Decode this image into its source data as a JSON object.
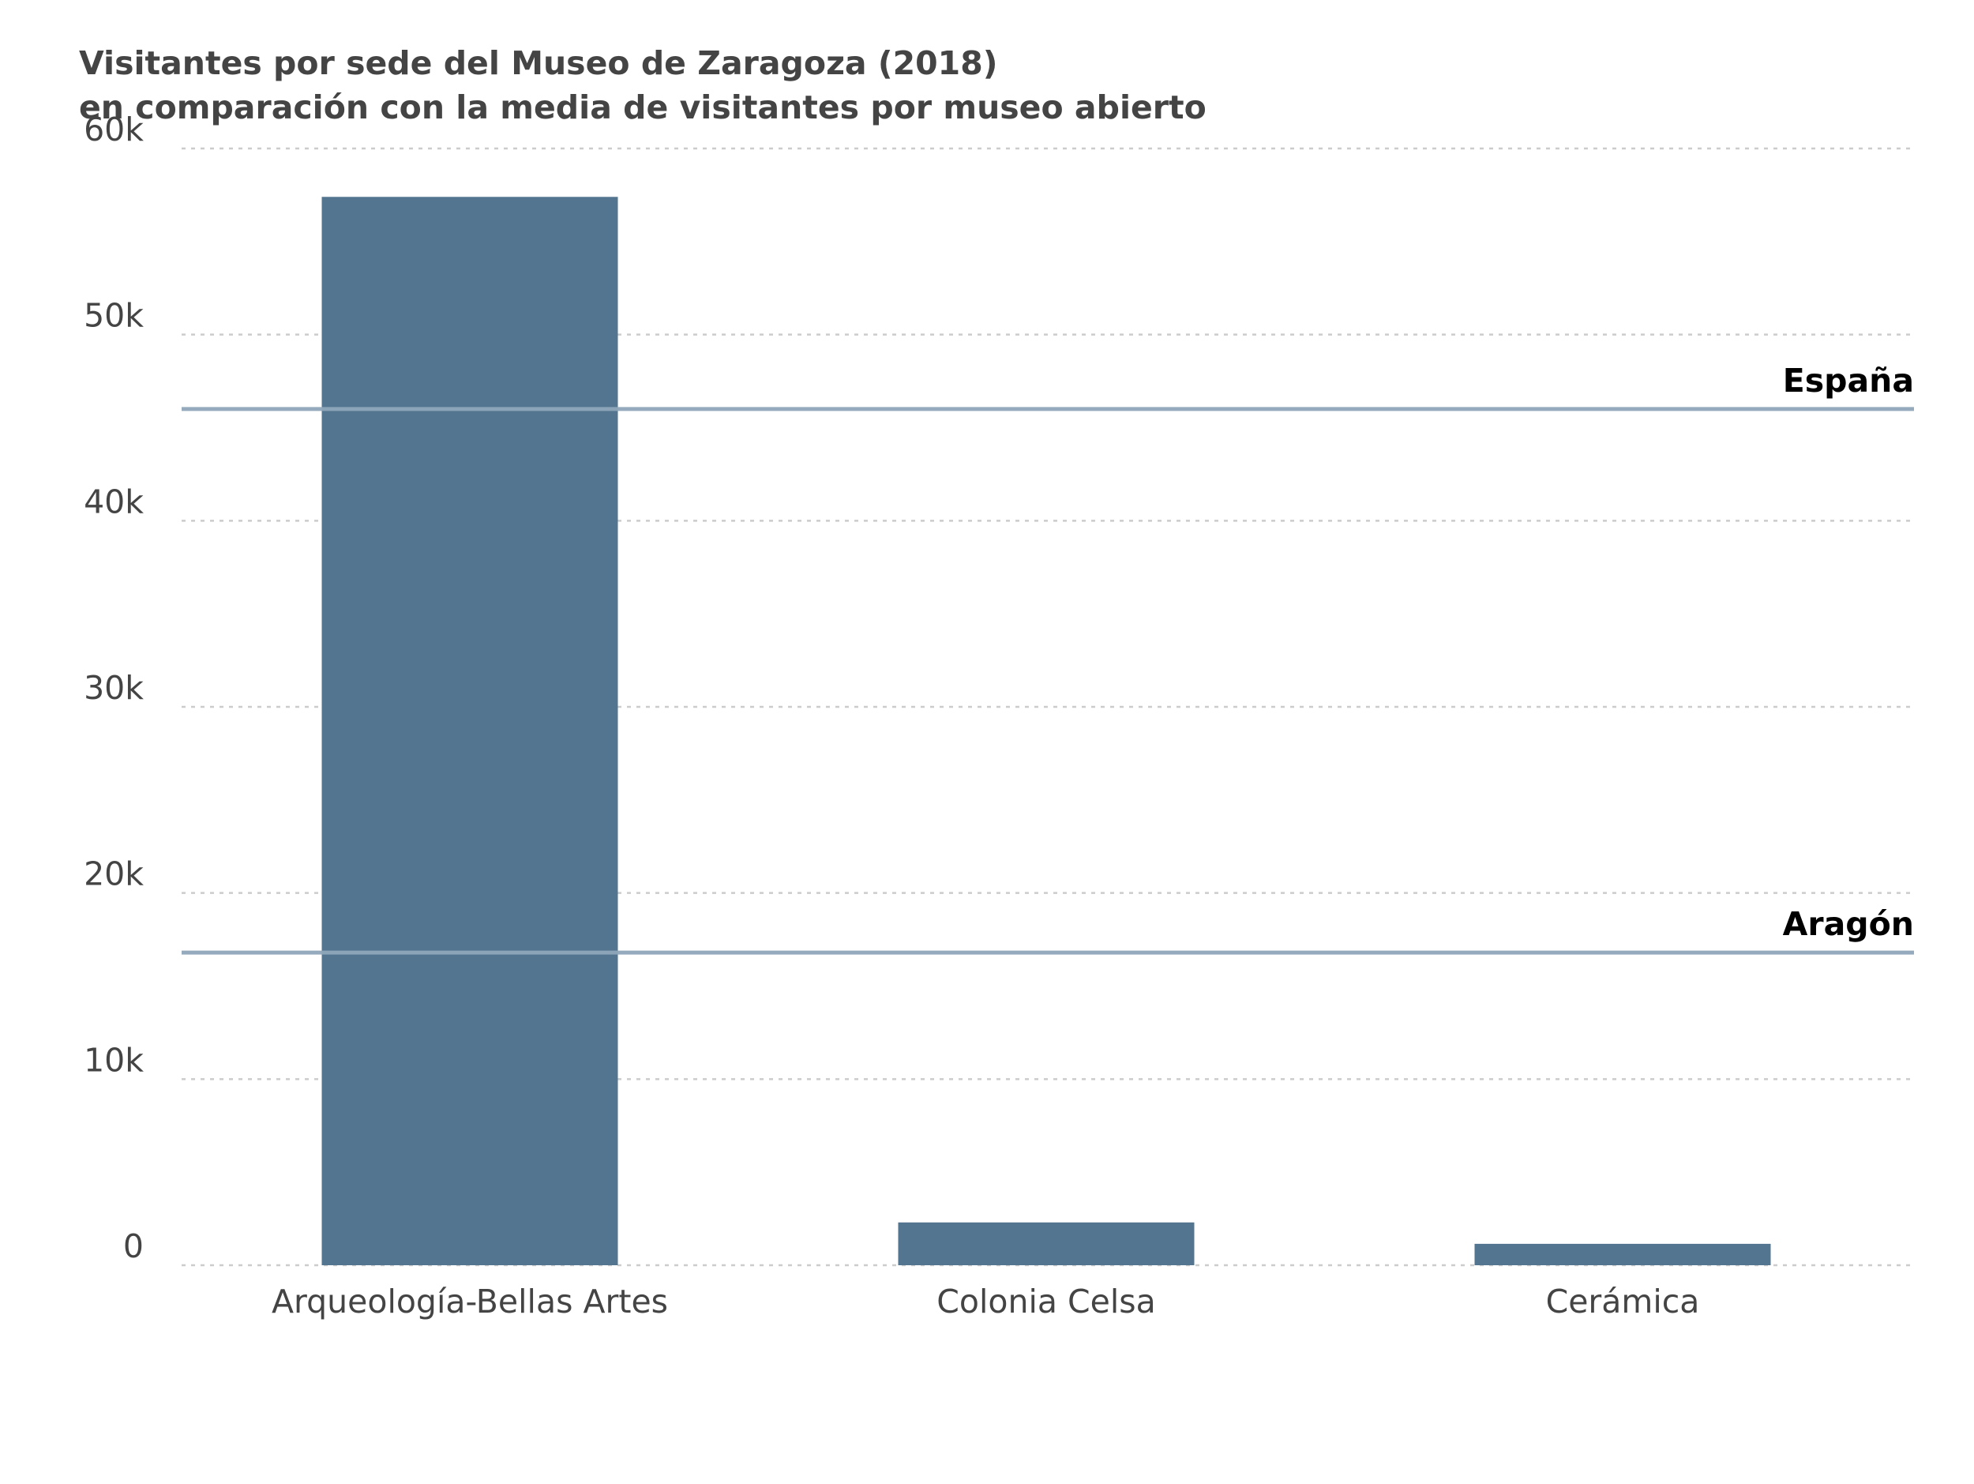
{
  "chart_data": {
    "type": "bar",
    "title": "Visitantes por sede del Museo de Zaragoza (2018)",
    "subtitle": "en comparación con la media de visitantes por museo abierto",
    "categories": [
      "Arqueología-Bellas Artes",
      "Colonia Celsa",
      "Cerámica"
    ],
    "values": [
      57400,
      2300,
      1150
    ],
    "ylim": [
      0,
      60000
    ],
    "yticks": [
      0,
      10000,
      20000,
      30000,
      40000,
      50000,
      60000
    ],
    "ytick_labels": [
      "0",
      "10k",
      "20k",
      "30k",
      "40k",
      "50k",
      "60k"
    ],
    "grid": "horizontal-dotted",
    "reference_lines": [
      {
        "label": "España",
        "value": 46000
      },
      {
        "label": "Aragón",
        "value": 16800
      }
    ],
    "colors": {
      "bar": "#53758f",
      "reference_line": "#8fa6b9",
      "grid": "#cccccc"
    }
  }
}
